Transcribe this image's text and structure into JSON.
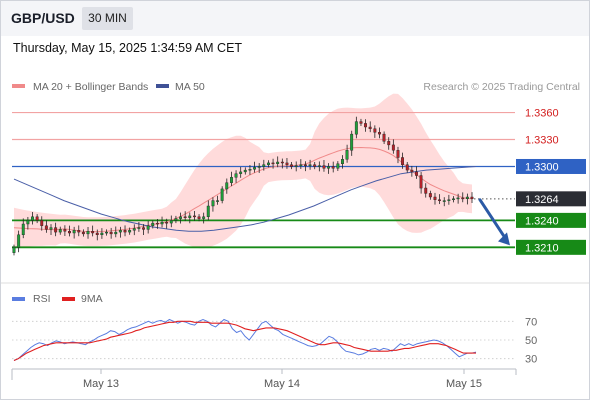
{
  "header": {
    "pair": "GBP/USD",
    "timeframe": "30 MIN",
    "datetime": "Thursday, May 15, 2025 1:34:59 AM CET"
  },
  "legend": {
    "ma20": "MA 20 + Bollinger Bands",
    "ma50": "MA 50",
    "source": "Research © 2025 Trading Central",
    "rsi": "RSI",
    "ma9": "9MA"
  },
  "colors": {
    "bullish": "#1f9e3a",
    "bearish": "#b4222a",
    "bollinger_fill": "#ffd9d9",
    "ma20": "#f08a8a",
    "ma50": "#4a5fa8",
    "resistance": "#e23b3b",
    "pivot": "#2f62c4",
    "support": "#178a17",
    "arrow": "#2b5aa6",
    "rsi": "#5a7de0",
    "ma9": "#e02020"
  },
  "chart_data": [
    {
      "type": "candlestick",
      "ylim": [
        1.3187,
        1.3374
      ],
      "x_labels": [
        "May 13",
        "May 14",
        "May 15"
      ],
      "resistance": [
        1.336,
        1.333
      ],
      "pivot": 1.33,
      "support": [
        1.324,
        1.321
      ],
      "last_price": 1.3264,
      "level_labels": [
        "1.3360",
        "1.3330",
        "1.3300",
        "1.3264",
        "1.3240",
        "1.3210"
      ],
      "forecast": {
        "from": 1.3264,
        "to": 1.321
      },
      "closes": [
        1.321,
        1.3224,
        1.3236,
        1.324,
        1.3244,
        1.324,
        1.3234,
        1.323,
        1.3232,
        1.3227,
        1.323,
        1.3228,
        1.3226,
        1.3229,
        1.3227,
        1.3225,
        1.3228,
        1.3226,
        1.3224,
        1.3226,
        1.3227,
        1.3225,
        1.3227,
        1.3229,
        1.3227,
        1.3229,
        1.3231,
        1.3232,
        1.323,
        1.3234,
        1.3237,
        1.3236,
        1.3238,
        1.3237,
        1.324,
        1.3242,
        1.3244,
        1.3243,
        1.3245,
        1.3244,
        1.3242,
        1.3244,
        1.3256,
        1.3262,
        1.3262,
        1.3275,
        1.3282,
        1.3288,
        1.3292,
        1.3294,
        1.3296,
        1.3297,
        1.3299,
        1.33,
        1.3302,
        1.3304,
        1.3303,
        1.3305,
        1.3304,
        1.3302,
        1.33,
        1.3301,
        1.3302,
        1.3301,
        1.3302,
        1.33,
        1.3301,
        1.3298,
        1.33,
        1.3298,
        1.3303,
        1.3308,
        1.3318,
        1.3336,
        1.335,
        1.3348,
        1.3344,
        1.3342,
        1.3338,
        1.3336,
        1.3328,
        1.3324,
        1.3318,
        1.331,
        1.3302,
        1.3296,
        1.3294,
        1.329,
        1.3276,
        1.327,
        1.3266,
        1.3263,
        1.3262,
        1.3262,
        1.3263,
        1.3264,
        1.3265,
        1.3264,
        1.3266,
        1.3264
      ],
      "ma50": [
        1.3286,
        1.328,
        1.3274,
        1.3268,
        1.3262,
        1.3257,
        1.3252,
        1.3247,
        1.3243,
        1.3239,
        1.3236,
        1.3233,
        1.3231,
        1.3229,
        1.3228,
        1.3228,
        1.3229,
        1.3231,
        1.3233,
        1.3235,
        1.3238,
        1.3242,
        1.3246,
        1.3251,
        1.3256,
        1.3262,
        1.3268,
        1.3274,
        1.3279,
        1.3284,
        1.3288,
        1.3292,
        1.3294,
        1.3296,
        1.3297,
        1.3298,
        1.3299,
        1.33
      ],
      "rsi_ylim": [
        20,
        80
      ],
      "rsi_ticks": [
        70,
        50,
        30
      ],
      "rsi": [
        28,
        30,
        34,
        38,
        42,
        45,
        47,
        46,
        44,
        47,
        49,
        48,
        46,
        47,
        48,
        47,
        46,
        45,
        48,
        50,
        53,
        55,
        57,
        60,
        59,
        56,
        58,
        61,
        63,
        64,
        66,
        68,
        70,
        68,
        70,
        71,
        69,
        72,
        70,
        68,
        70,
        69,
        67,
        66,
        70,
        72,
        70,
        66,
        64,
        68,
        72,
        70,
        62,
        58,
        60,
        54,
        50,
        56,
        62,
        68,
        70,
        66,
        62,
        60,
        56,
        54,
        52,
        50,
        48,
        46,
        44,
        43,
        44,
        46,
        50,
        54,
        52,
        48,
        42,
        38,
        37,
        36,
        34,
        35,
        37,
        40,
        41,
        39,
        41,
        40,
        38,
        42,
        46,
        44,
        46,
        44,
        46,
        47,
        48,
        49,
        50,
        49,
        47,
        44,
        40,
        36,
        32,
        34,
        36,
        36,
        37
      ],
      "rsi_ma9": [
        28,
        30,
        33,
        36,
        38,
        40,
        42,
        44,
        45,
        46,
        47,
        47,
        47,
        47,
        47,
        47,
        47,
        47,
        47,
        48,
        49,
        50,
        51,
        53,
        54,
        55,
        56,
        57,
        58,
        60,
        61,
        63,
        64,
        65,
        66,
        67,
        68,
        69,
        69,
        70,
        70,
        70,
        70,
        69,
        69,
        69,
        69,
        68,
        68,
        68,
        68,
        68,
        67,
        66,
        64,
        62,
        61,
        60,
        61,
        62,
        63,
        63,
        63,
        62,
        61,
        60,
        58,
        56,
        54,
        52,
        50,
        48,
        46,
        45,
        45,
        46,
        47,
        47,
        46,
        45,
        44,
        42,
        41,
        40,
        39,
        38,
        38,
        38,
        38,
        38,
        39,
        39,
        40,
        41,
        41,
        42,
        43,
        44,
        45,
        46,
        46,
        46,
        45,
        44,
        42,
        40,
        38,
        36,
        36,
        36,
        36
      ]
    }
  ]
}
